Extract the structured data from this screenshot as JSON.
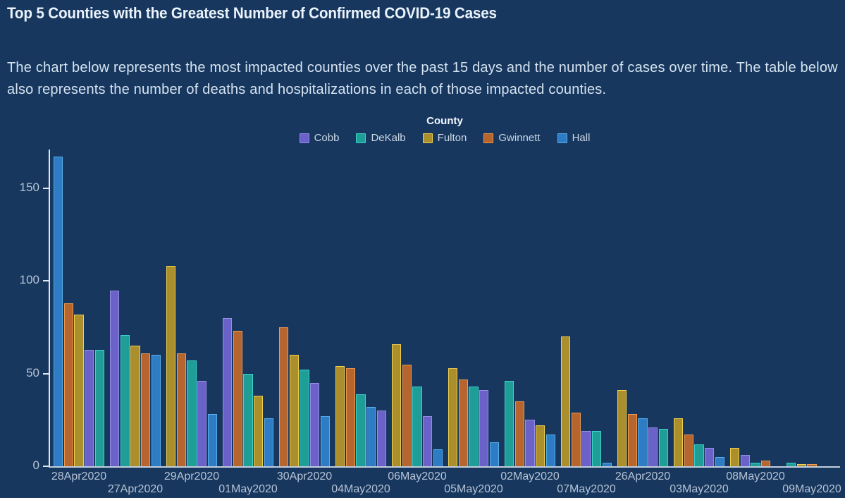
{
  "title": "Top 5 Counties with the Greatest Number of Confirmed COVID-19 Cases",
  "subtitle": {
    "line1": "The chart below represents the most impacted counties over the past 15 days and the number of cases over time. The table below",
    "line2": "also represents the number of deaths and hospitalizations in each of those impacted counties."
  },
  "legend": {
    "title": "County",
    "items": [
      {
        "label": "Cobb"
      },
      {
        "label": "DeKalb"
      },
      {
        "label": "Fulton"
      },
      {
        "label": "Gwinnett"
      },
      {
        "label": "Hall"
      }
    ]
  },
  "chart_data": {
    "type": "bar",
    "title": "Top 5 Counties with the Greatest Number of Confirmed COVID-19 Cases",
    "xlabel": "",
    "ylabel": "",
    "ylim": [
      0,
      175
    ],
    "yticks": [
      0,
      50,
      100,
      150
    ],
    "grid": false,
    "legend_position": "top-center",
    "series_names": [
      "Cobb",
      "DeKalb",
      "Fulton",
      "Gwinnett",
      "Hall"
    ],
    "colors": {
      "Cobb": {
        "fill": "#6A62C8",
        "stroke": "#938DE4"
      },
      "DeKalb": {
        "fill": "#1F9E98",
        "stroke": "#3ED2CA"
      },
      "Fulton": {
        "fill": "#AB8F2D",
        "stroke": "#EFCF4F"
      },
      "Gwinnett": {
        "fill": "#B5652D",
        "stroke": "#EC9A4E"
      },
      "Hall": {
        "fill": "#2D7CC4",
        "stroke": "#57ADE8"
      }
    },
    "groups": [
      {
        "date": "28Apr2020",
        "label_row": 1,
        "bars": [
          {
            "county": "Hall",
            "value": 167
          },
          {
            "county": "Gwinnett",
            "value": 88
          },
          {
            "county": "Fulton",
            "value": 82
          },
          {
            "county": "Cobb",
            "value": 63
          },
          {
            "county": "DeKalb",
            "value": 63
          }
        ]
      },
      {
        "date": "27Apr2020",
        "label_row": 2,
        "bars": [
          {
            "county": "Cobb",
            "value": 95
          },
          {
            "county": "DeKalb",
            "value": 71
          },
          {
            "county": "Fulton",
            "value": 65
          },
          {
            "county": "Gwinnett",
            "value": 61
          },
          {
            "county": "Hall",
            "value": 60
          }
        ]
      },
      {
        "date": "29Apr2020",
        "label_row": 1,
        "bars": [
          {
            "county": "Fulton",
            "value": 108
          },
          {
            "county": "Gwinnett",
            "value": 61
          },
          {
            "county": "DeKalb",
            "value": 57
          },
          {
            "county": "Cobb",
            "value": 46
          },
          {
            "county": "Hall",
            "value": 28
          }
        ]
      },
      {
        "date": "01May2020",
        "label_row": 2,
        "bars": [
          {
            "county": "Cobb",
            "value": 80
          },
          {
            "county": "Gwinnett",
            "value": 73
          },
          {
            "county": "DeKalb",
            "value": 50
          },
          {
            "county": "Fulton",
            "value": 38
          },
          {
            "county": "Hall",
            "value": 26
          }
        ]
      },
      {
        "date": "30Apr2020",
        "label_row": 1,
        "bars": [
          {
            "county": "Gwinnett",
            "value": 75
          },
          {
            "county": "Fulton",
            "value": 60
          },
          {
            "county": "DeKalb",
            "value": 52
          },
          {
            "county": "Cobb",
            "value": 45
          },
          {
            "county": "Hall",
            "value": 27
          }
        ]
      },
      {
        "date": "04May2020",
        "label_row": 2,
        "bars": [
          {
            "county": "Fulton",
            "value": 54
          },
          {
            "county": "Gwinnett",
            "value": 53
          },
          {
            "county": "DeKalb",
            "value": 39
          },
          {
            "county": "Hall",
            "value": 32
          },
          {
            "county": "Cobb",
            "value": 30
          }
        ]
      },
      {
        "date": "06May2020",
        "label_row": 1,
        "bars": [
          {
            "county": "Fulton",
            "value": 66
          },
          {
            "county": "Gwinnett",
            "value": 55
          },
          {
            "county": "DeKalb",
            "value": 43
          },
          {
            "county": "Cobb",
            "value": 27
          },
          {
            "county": "Hall",
            "value": 9
          }
        ]
      },
      {
        "date": "05May2020",
        "label_row": 2,
        "bars": [
          {
            "county": "Fulton",
            "value": 53
          },
          {
            "county": "Gwinnett",
            "value": 47
          },
          {
            "county": "DeKalb",
            "value": 43
          },
          {
            "county": "Cobb",
            "value": 41
          },
          {
            "county": "Hall",
            "value": 13
          }
        ]
      },
      {
        "date": "02May2020",
        "label_row": 1,
        "bars": [
          {
            "county": "DeKalb",
            "value": 46
          },
          {
            "county": "Gwinnett",
            "value": 35
          },
          {
            "county": "Cobb",
            "value": 25
          },
          {
            "county": "Fulton",
            "value": 22
          },
          {
            "county": "Hall",
            "value": 17
          }
        ]
      },
      {
        "date": "07May2020",
        "label_row": 2,
        "bars": [
          {
            "county": "Fulton",
            "value": 70
          },
          {
            "county": "Gwinnett",
            "value": 29
          },
          {
            "county": "Cobb",
            "value": 19
          },
          {
            "county": "DeKalb",
            "value": 19
          },
          {
            "county": "Hall",
            "value": 2
          }
        ]
      },
      {
        "date": "26Apr2020",
        "label_row": 1,
        "bars": [
          {
            "county": "Fulton",
            "value": 41
          },
          {
            "county": "Gwinnett",
            "value": 28
          },
          {
            "county": "Hall",
            "value": 26
          },
          {
            "county": "Cobb",
            "value": 21
          },
          {
            "county": "DeKalb",
            "value": 20
          }
        ]
      },
      {
        "date": "03May2020",
        "label_row": 2,
        "bars": [
          {
            "county": "Fulton",
            "value": 26
          },
          {
            "county": "Gwinnett",
            "value": 17
          },
          {
            "county": "DeKalb",
            "value": 12
          },
          {
            "county": "Cobb",
            "value": 10
          },
          {
            "county": "Hall",
            "value": 5
          }
        ]
      },
      {
        "date": "08May2020",
        "label_row": 1,
        "bars": [
          {
            "county": "Fulton",
            "value": 10
          },
          {
            "county": "Cobb",
            "value": 6
          },
          {
            "county": "DeKalb",
            "value": 2
          },
          {
            "county": "Gwinnett",
            "value": 3
          },
          {
            "county": "Hall",
            "value": 0
          }
        ]
      },
      {
        "date": "09May2020",
        "label_row": 2,
        "bars": [
          {
            "county": "DeKalb",
            "value": 2
          },
          {
            "county": "Fulton",
            "value": 1
          },
          {
            "county": "Gwinnett",
            "value": 1
          },
          {
            "county": "Cobb",
            "value": 0
          },
          {
            "county": "Hall",
            "value": 0
          }
        ]
      }
    ]
  }
}
